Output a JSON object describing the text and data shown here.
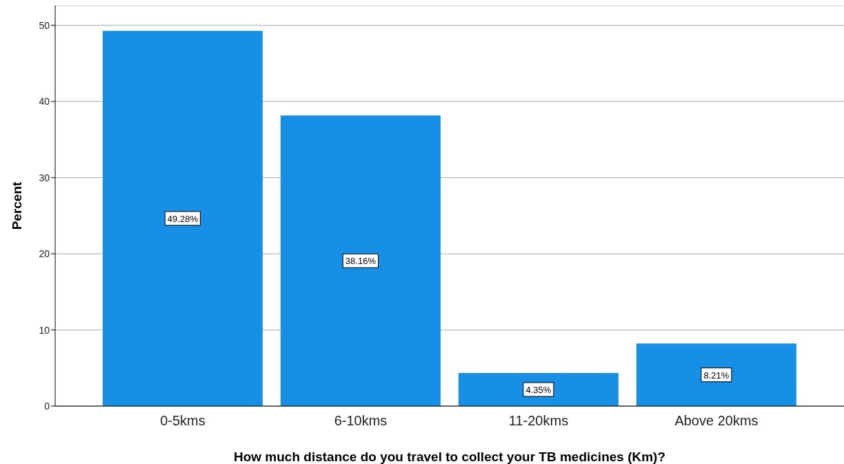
{
  "chart_data": {
    "type": "bar",
    "xlabel": "How much distance do you travel to collect your TB medicines (Km)?",
    "ylabel": "Percent",
    "categories": [
      "0-5kms",
      "6-10kms",
      "11-20kms",
      "Above 20kms"
    ],
    "values": [
      49.28,
      38.16,
      4.35,
      8.21
    ],
    "value_labels": [
      "49.28%",
      "38.16%",
      "4.35%",
      "8.21%"
    ],
    "color": "#1590e6",
    "ylim": [
      0,
      52.6
    ],
    "yticks": [
      0,
      10,
      20,
      30,
      40,
      50
    ],
    "grid": "y"
  }
}
